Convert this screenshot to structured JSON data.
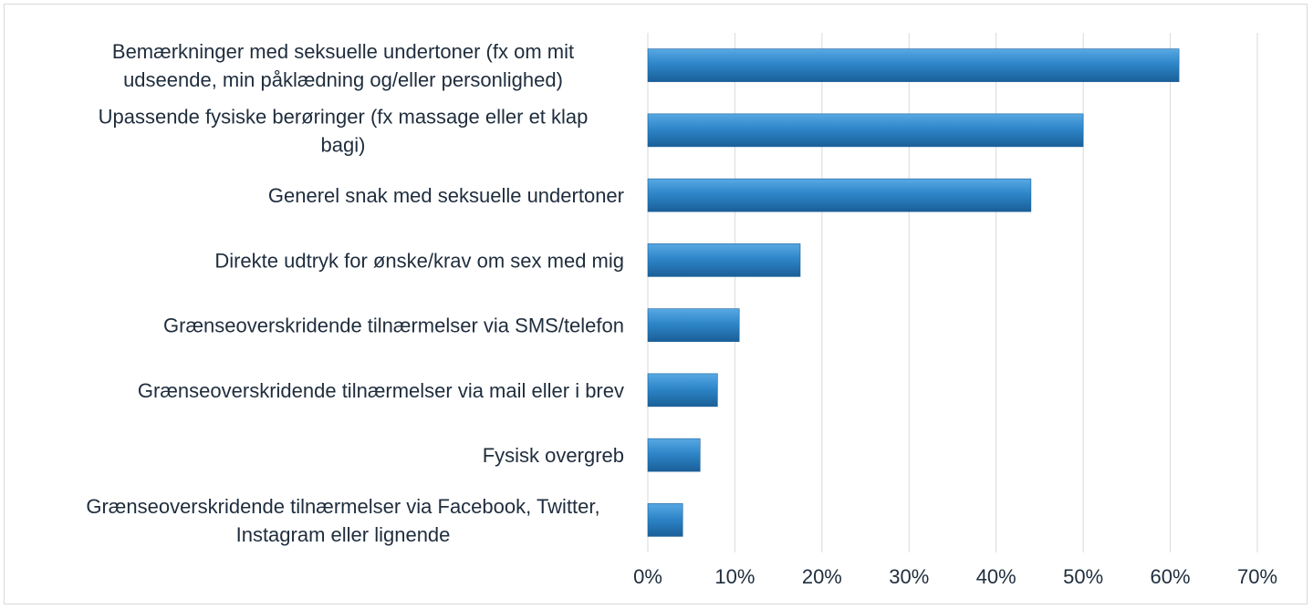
{
  "chart_data": {
    "type": "bar",
    "orientation": "horizontal",
    "categories": [
      [
        "Bemærkninger med seksuelle undertoner (fx om mit",
        "udseende, min påklædning og/eller personlighed)"
      ],
      [
        "Upassende fysiske berøringer (fx massage eller et klap",
        "bagi)"
      ],
      [
        "Generel snak med seksuelle undertoner"
      ],
      [
        "Direkte udtryk for ønske/krav om sex med mig"
      ],
      [
        "Grænseoverskridende tilnærmelser via SMS/telefon"
      ],
      [
        "Grænseoverskridende tilnærmelser via mail eller i brev"
      ],
      [
        "Fysisk overgreb"
      ],
      [
        "Grænseoverskridende tilnærmelser via Facebook, Twitter,",
        "Instagram eller lignende"
      ]
    ],
    "values": [
      61,
      50,
      44,
      17.5,
      10.5,
      8,
      6,
      4
    ],
    "xlim": [
      0,
      70
    ],
    "xticks": [
      "0%",
      "10%",
      "20%",
      "30%",
      "40%",
      "50%",
      "60%",
      "70%"
    ],
    "grid": "vertical",
    "bar_color": "#2e86c9",
    "title": "",
    "xlabel": "",
    "ylabel": ""
  }
}
